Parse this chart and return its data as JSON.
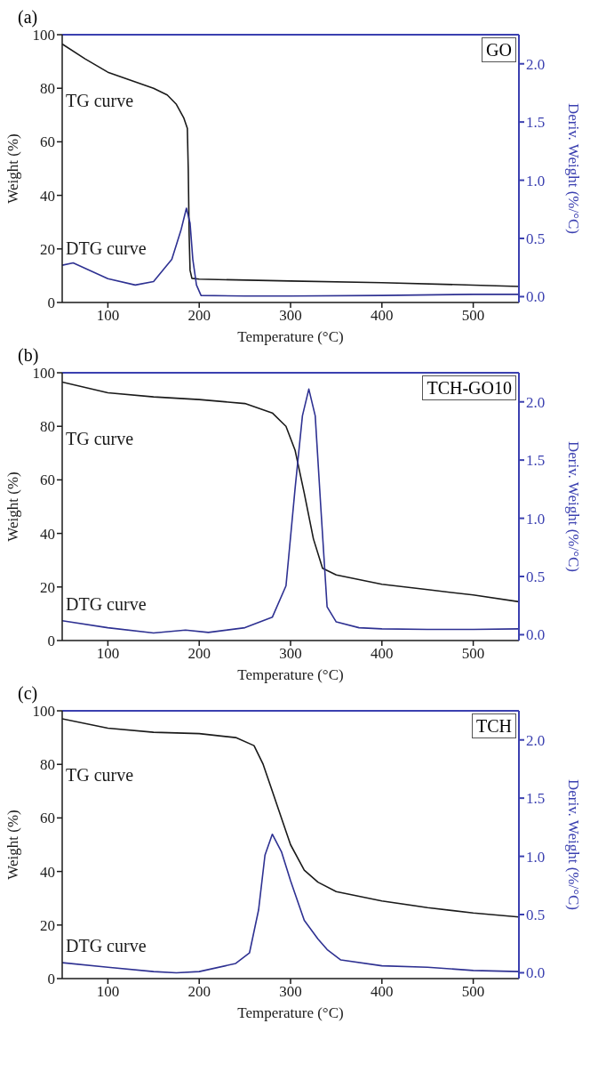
{
  "chart_data": [
    {
      "type": "line",
      "title": "(a)",
      "xlabel": "Temperature (°C)",
      "ylabel": "Weight (%)",
      "y2label": "Deriv. Weight (%/°C)",
      "annotations": [
        "GO"
      ],
      "xlim": [
        50,
        550
      ],
      "xticks": [
        100,
        200,
        300,
        400,
        500
      ],
      "ylim": [
        0,
        100
      ],
      "yticks": [
        0,
        20,
        40,
        60,
        80,
        100
      ],
      "y2lim": [
        -0.05,
        2.25
      ],
      "y2ticks": [
        {
          "value": 0,
          "label": "0.0"
        },
        {
          "value": 0.5,
          "label": "0.5"
        },
        {
          "value": 1,
          "label": "1.0"
        },
        {
          "value": 1.5,
          "label": "1.5"
        },
        {
          "value": 2,
          "label": "2.0"
        }
      ],
      "series": [
        {
          "name": "TG curve",
          "color": "#1a1a1a",
          "x": [
            50,
            75,
            100,
            125,
            150,
            165,
            175,
            183,
            187,
            188,
            189,
            190,
            192,
            200,
            300,
            400,
            500,
            550
          ],
          "values": [
            96.5,
            91,
            86,
            83,
            80,
            77.5,
            74,
            69,
            65,
            50,
            25,
            12,
            9,
            8.7,
            8,
            7.4,
            6.5,
            6
          ]
        },
        {
          "name": "DTG curve",
          "color": "#2e3192",
          "axis": "y2",
          "x": [
            50,
            62,
            100,
            130,
            150,
            170,
            180,
            186,
            190,
            193,
            197,
            202,
            250,
            300,
            400,
            500,
            550
          ],
          "values": [
            0.27,
            0.29,
            0.155,
            0.1,
            0.13,
            0.32,
            0.57,
            0.76,
            0.63,
            0.32,
            0.1,
            0.01,
            0.005,
            0.005,
            0.01,
            0.02,
            0.02
          ]
        }
      ]
    },
    {
      "type": "line",
      "title": "(b)",
      "xlabel": "Temperature (°C)",
      "ylabel": "Weight (%)",
      "y2label": "Deriv. Weight (%/°C)",
      "annotations": [
        "TCH-GO10"
      ],
      "xlim": [
        50,
        550
      ],
      "xticks": [
        100,
        200,
        300,
        400,
        500
      ],
      "ylim": [
        0,
        100
      ],
      "yticks": [
        0,
        20,
        40,
        60,
        80,
        100
      ],
      "y2lim": [
        -0.05,
        2.25
      ],
      "y2ticks": [
        {
          "value": 0,
          "label": "0.0"
        },
        {
          "value": 0.5,
          "label": "0.5"
        },
        {
          "value": 1,
          "label": "1.0"
        },
        {
          "value": 1.5,
          "label": "1.5"
        },
        {
          "value": 2,
          "label": "2.0"
        }
      ],
      "series": [
        {
          "name": "TG curve",
          "color": "#1a1a1a",
          "x": [
            50,
            100,
            150,
            200,
            250,
            280,
            295,
            305,
            315,
            325,
            335,
            350,
            400,
            450,
            500,
            550
          ],
          "values": [
            96.5,
            92.5,
            91,
            90,
            88.5,
            85,
            80,
            71,
            55,
            38,
            27,
            24.5,
            21,
            19,
            17,
            14.5
          ]
        },
        {
          "name": "DTG curve",
          "color": "#2e3192",
          "axis": "y2",
          "x": [
            50,
            100,
            150,
            185,
            210,
            250,
            280,
            295,
            305,
            313,
            320,
            327,
            333,
            340,
            350,
            375,
            400,
            450,
            500,
            550
          ],
          "values": [
            0.12,
            0.06,
            0.015,
            0.04,
            0.02,
            0.06,
            0.15,
            0.42,
            1.26,
            1.88,
            2.11,
            1.88,
            1.11,
            0.24,
            0.11,
            0.06,
            0.05,
            0.045,
            0.045,
            0.05
          ]
        }
      ]
    },
    {
      "type": "line",
      "title": "(c)",
      "xlabel": "Temperature (°C)",
      "ylabel": "Weight (%)",
      "y2label": "Deriv. Weight (%/°C)",
      "annotations": [
        "TCH"
      ],
      "xlim": [
        50,
        550
      ],
      "xticks": [
        100,
        200,
        300,
        400,
        500
      ],
      "ylim": [
        0,
        100
      ],
      "yticks": [
        0,
        20,
        40,
        60,
        80,
        100
      ],
      "y2lim": [
        -0.05,
        2.25
      ],
      "y2ticks": [
        {
          "value": 0,
          "label": "0.0"
        },
        {
          "value": 0.5,
          "label": "0.5"
        },
        {
          "value": 1,
          "label": "1.0"
        },
        {
          "value": 1.5,
          "label": "1.5"
        },
        {
          "value": 2,
          "label": "2.0"
        }
      ],
      "series": [
        {
          "name": "TG curve",
          "color": "#1a1a1a",
          "x": [
            50,
            100,
            150,
            200,
            240,
            260,
            270,
            280,
            290,
            300,
            315,
            330,
            350,
            400,
            450,
            500,
            550
          ],
          "values": [
            97,
            93.5,
            92,
            91.5,
            90,
            87,
            80,
            70,
            60,
            50,
            40.5,
            36,
            32.5,
            29,
            26.5,
            24.5,
            23
          ]
        },
        {
          "name": "DTG curve",
          "color": "#2e3192",
          "axis": "y2",
          "x": [
            50,
            100,
            150,
            175,
            200,
            240,
            255,
            265,
            272,
            280,
            290,
            300,
            315,
            330,
            340,
            355,
            400,
            450,
            500,
            550
          ],
          "values": [
            0.087,
            0.047,
            0.01,
            0,
            0.01,
            0.08,
            0.17,
            0.54,
            1.01,
            1.19,
            1.04,
            0.79,
            0.45,
            0.29,
            0.2,
            0.11,
            0.06,
            0.047,
            0.02,
            0.01
          ]
        }
      ]
    }
  ]
}
